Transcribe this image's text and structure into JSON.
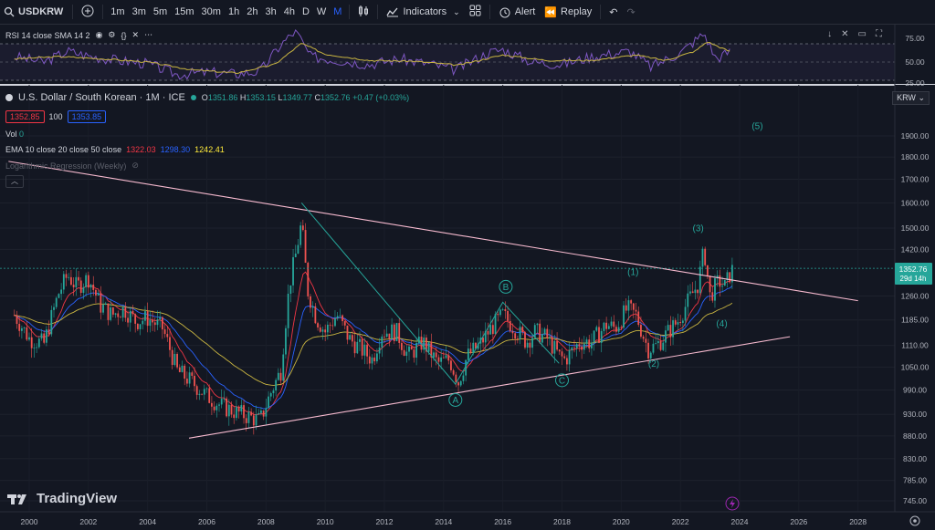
{
  "toolbar": {
    "symbol": "USDKRW",
    "intervals": [
      "1m",
      "3m",
      "5m",
      "15m",
      "30m",
      "1h",
      "2h",
      "3h",
      "4h",
      "D",
      "W",
      "M"
    ],
    "active_interval": "M",
    "indicators_label": "Indicators",
    "alert_label": "Alert",
    "replay_label": "Replay"
  },
  "rsi": {
    "legend": "RSI 14 close SMA 14 2",
    "levels": [
      "75.00",
      "50.00",
      "25.00"
    ]
  },
  "main": {
    "title": "U.S. Dollar / South Korean · 1M · ICE",
    "ohlc": {
      "o": "1351.86",
      "h": "1353.15",
      "l": "1349.77",
      "c": "1352.76",
      "chg": "+0.47 (+0.03%)"
    },
    "bid": "1352.85",
    "spread": "100",
    "ask": "1353.85",
    "vol_label": "Vol",
    "vol_value": "0",
    "ema_label": "EMA 10 close 20 close 50 close",
    "ema_values": [
      "1322.03",
      "1298.30",
      "1242.41"
    ],
    "logreg_label": "Logarithmic Regression (Weekly)",
    "currency": "KRW",
    "last_price": "1352.76",
    "countdown": "29d 14h",
    "logo": "TradingView"
  },
  "chart_data": {
    "type": "candlestick",
    "x_ticks": [
      "2000",
      "2002",
      "2004",
      "2006",
      "2008",
      "2010",
      "2012",
      "2014",
      "2016",
      "2018",
      "2020",
      "2022",
      "2024",
      "2026",
      "2028"
    ],
    "y_ticks": [
      "1900.00",
      "1800.00",
      "1700.00",
      "1600.00",
      "1500.00",
      "1420.00",
      "1352.76",
      "1260.00",
      "1185.00",
      "1110.00",
      "1050.00",
      "990.00",
      "930.00",
      "880.00",
      "830.00",
      "785.00",
      "745.00"
    ],
    "log_scale": true,
    "ylim": [
      725,
      1990
    ],
    "xlim": [
      1999.3,
      2029.0
    ],
    "series_monthly_close": [
      [
        1999.5,
        1200
      ],
      [
        2000.0,
        1130
      ],
      [
        2000.5,
        1115
      ],
      [
        2001.0,
        1270
      ],
      [
        2001.3,
        1330
      ],
      [
        2001.6,
        1290
      ],
      [
        2002.0,
        1320
      ],
      [
        2002.4,
        1230
      ],
      [
        2002.8,
        1200
      ],
      [
        2003.2,
        1220
      ],
      [
        2003.6,
        1180
      ],
      [
        2004.0,
        1190
      ],
      [
        2004.5,
        1160
      ],
      [
        2005.0,
        1040
      ],
      [
        2005.5,
        1010
      ],
      [
        2006.0,
        975
      ],
      [
        2006.5,
        950
      ],
      [
        2007.0,
        935
      ],
      [
        2007.4,
        925
      ],
      [
        2007.8,
        915
      ],
      [
        2008.2,
        990
      ],
      [
        2008.5,
        1040
      ],
      [
        2008.8,
        1300
      ],
      [
        2009.0,
        1400
      ],
      [
        2009.2,
        1520
      ],
      [
        2009.4,
        1280
      ],
      [
        2009.7,
        1190
      ],
      [
        2010.0,
        1150
      ],
      [
        2010.4,
        1200
      ],
      [
        2010.8,
        1130
      ],
      [
        2011.2,
        1100
      ],
      [
        2011.6,
        1070
      ],
      [
        2011.9,
        1150
      ],
      [
        2012.4,
        1150
      ],
      [
        2012.8,
        1080
      ],
      [
        2013.3,
        1120
      ],
      [
        2013.8,
        1060
      ],
      [
        2014.2,
        1070
      ],
      [
        2014.5,
        1010
      ],
      [
        2014.8,
        1080
      ],
      [
        2015.2,
        1110
      ],
      [
        2015.6,
        1160
      ],
      [
        2016.0,
        1200
      ],
      [
        2016.5,
        1150
      ],
      [
        2016.8,
        1120
      ],
      [
        2017.1,
        1150
      ],
      [
        2017.5,
        1130
      ],
      [
        2017.9,
        1080
      ],
      [
        2018.1,
        1070
      ],
      [
        2018.6,
        1120
      ],
      [
        2019.0,
        1120
      ],
      [
        2019.5,
        1170
      ],
      [
        2019.8,
        1160
      ],
      [
        2020.2,
        1220
      ],
      [
        2020.5,
        1200
      ],
      [
        2020.9,
        1100
      ],
      [
        2021.2,
        1110
      ],
      [
        2021.6,
        1150
      ],
      [
        2021.9,
        1180
      ],
      [
        2022.3,
        1250
      ],
      [
        2022.6,
        1300
      ],
      [
        2022.8,
        1420
      ],
      [
        2023.0,
        1260
      ],
      [
        2023.3,
        1310
      ],
      [
        2023.5,
        1290
      ],
      [
        2023.7,
        1340
      ],
      [
        2023.8,
        1352.76
      ]
    ],
    "lines": [
      {
        "name": "resistance",
        "from": [
          1999.3,
          1780
        ],
        "to": [
          2028.0,
          1245
        ]
      },
      {
        "name": "support",
        "from": [
          2005.4,
          875
        ],
        "to": [
          2025.7,
          1135
        ]
      },
      {
        "name": "wave",
        "points": [
          [
            2009.2,
            1600
          ],
          [
            2014.4,
            1005
          ],
          [
            2016.0,
            1240
          ],
          [
            2017.9,
            1060
          ]
        ]
      }
    ],
    "wave_labels": [
      {
        "text": "A",
        "x": 2014.4,
        "y": 965,
        "circled": true
      },
      {
        "text": "B",
        "x": 2016.1,
        "y": 1290,
        "circled": true
      },
      {
        "text": "C",
        "x": 2018.0,
        "y": 1015,
        "circled": true
      },
      {
        "text": "(1)",
        "x": 2020.4,
        "y": 1340
      },
      {
        "text": "(2)",
        "x": 2021.1,
        "y": 1060
      },
      {
        "text": "(3)",
        "x": 2022.6,
        "y": 1500
      },
      {
        "text": "(4)",
        "x": 2023.4,
        "y": 1175
      },
      {
        "text": "(5)",
        "x": 2024.6,
        "y": 1950
      }
    ],
    "rsi_values": [
      [
        1999.5,
        55
      ],
      [
        2000.5,
        48
      ],
      [
        2001.3,
        62
      ],
      [
        2002.0,
        56
      ],
      [
        2003.0,
        50
      ],
      [
        2004.0,
        46
      ],
      [
        2005.0,
        32
      ],
      [
        2006.0,
        35
      ],
      [
        2007.0,
        33
      ],
      [
        2007.8,
        36
      ],
      [
        2008.5,
        70
      ],
      [
        2009.0,
        88
      ],
      [
        2009.5,
        55
      ],
      [
        2010.5,
        50
      ],
      [
        2011.5,
        45
      ],
      [
        2012.5,
        52
      ],
      [
        2013.5,
        46
      ],
      [
        2014.4,
        38
      ],
      [
        2015.5,
        60
      ],
      [
        2016.0,
        64
      ],
      [
        2017.0,
        48
      ],
      [
        2018.0,
        45
      ],
      [
        2019.0,
        55
      ],
      [
        2020.3,
        62
      ],
      [
        2021.0,
        42
      ],
      [
        2022.0,
        60
      ],
      [
        2022.8,
        85
      ],
      [
        2023.2,
        52
      ],
      [
        2023.7,
        62
      ]
    ],
    "rsi_ma_values": [
      [
        1999.5,
        52
      ],
      [
        2001.0,
        55
      ],
      [
        2002.5,
        52
      ],
      [
        2004.0,
        48
      ],
      [
        2005.5,
        38
      ],
      [
        2007.0,
        34
      ],
      [
        2008.3,
        45
      ],
      [
        2009.2,
        72
      ],
      [
        2010.0,
        58
      ],
      [
        2011.5,
        50
      ],
      [
        2013.0,
        49
      ],
      [
        2014.5,
        44
      ],
      [
        2016.0,
        57
      ],
      [
        2017.5,
        50
      ],
      [
        2019.0,
        50
      ],
      [
        2020.5,
        57
      ],
      [
        2021.5,
        50
      ],
      [
        2022.5,
        62
      ],
      [
        2022.9,
        74
      ],
      [
        2023.7,
        61
      ]
    ],
    "rsi_ylim": [
      20,
      90
    ]
  }
}
